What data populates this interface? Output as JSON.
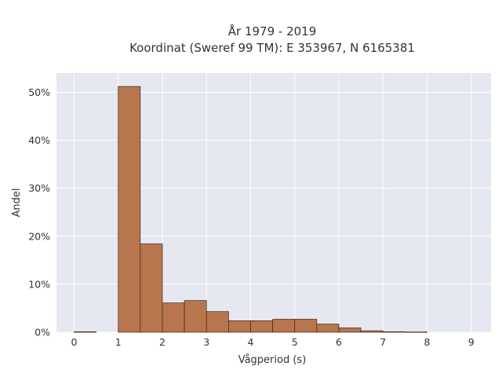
{
  "chart_data": {
    "type": "bar",
    "title": [
      "År 1979 - 2019",
      "Koordinat (Sweref 99 TM): E 353967, N 6165381"
    ],
    "xlabel": "Vågperiod (s)",
    "ylabel": "Andel",
    "xlim": [
      -0.4,
      9.45
    ],
    "ylim": [
      0,
      0.54
    ],
    "xticks": [
      {
        "value": 0,
        "label": "0"
      },
      {
        "value": 1,
        "label": "1"
      },
      {
        "value": 2,
        "label": "2"
      },
      {
        "value": 3,
        "label": "3"
      },
      {
        "value": 4,
        "label": "4"
      },
      {
        "value": 5,
        "label": "5"
      },
      {
        "value": 6,
        "label": "6"
      },
      {
        "value": 7,
        "label": "7"
      },
      {
        "value": 8,
        "label": "8"
      },
      {
        "value": 9,
        "label": "9"
      }
    ],
    "yticks": [
      {
        "value": 0,
        "label": "0%"
      },
      {
        "value": 0.1,
        "label": "10%"
      },
      {
        "value": 0.2,
        "label": "20%"
      },
      {
        "value": 0.3,
        "label": "30%"
      },
      {
        "value": 0.4,
        "label": "40%"
      },
      {
        "value": 0.5,
        "label": "50%"
      }
    ],
    "bin_width": 0.5,
    "bins": [
      {
        "x0": 0.0,
        "value": 0.001
      },
      {
        "x0": 1.0,
        "value": 0.512
      },
      {
        "x0": 1.5,
        "value": 0.184
      },
      {
        "x0": 2.0,
        "value": 0.061
      },
      {
        "x0": 2.5,
        "value": 0.066
      },
      {
        "x0": 3.0,
        "value": 0.043
      },
      {
        "x0": 3.5,
        "value": 0.024
      },
      {
        "x0": 4.0,
        "value": 0.024
      },
      {
        "x0": 4.5,
        "value": 0.027
      },
      {
        "x0": 5.0,
        "value": 0.027
      },
      {
        "x0": 5.5,
        "value": 0.017
      },
      {
        "x0": 6.0,
        "value": 0.009
      },
      {
        "x0": 6.5,
        "value": 0.003
      },
      {
        "x0": 7.0,
        "value": 0.001
      },
      {
        "x0": 7.5,
        "value": 0.0005
      }
    ],
    "bar_color": "#b8764f",
    "plot_background": "#e5e8f0",
    "grid": true,
    "legend": "none"
  }
}
